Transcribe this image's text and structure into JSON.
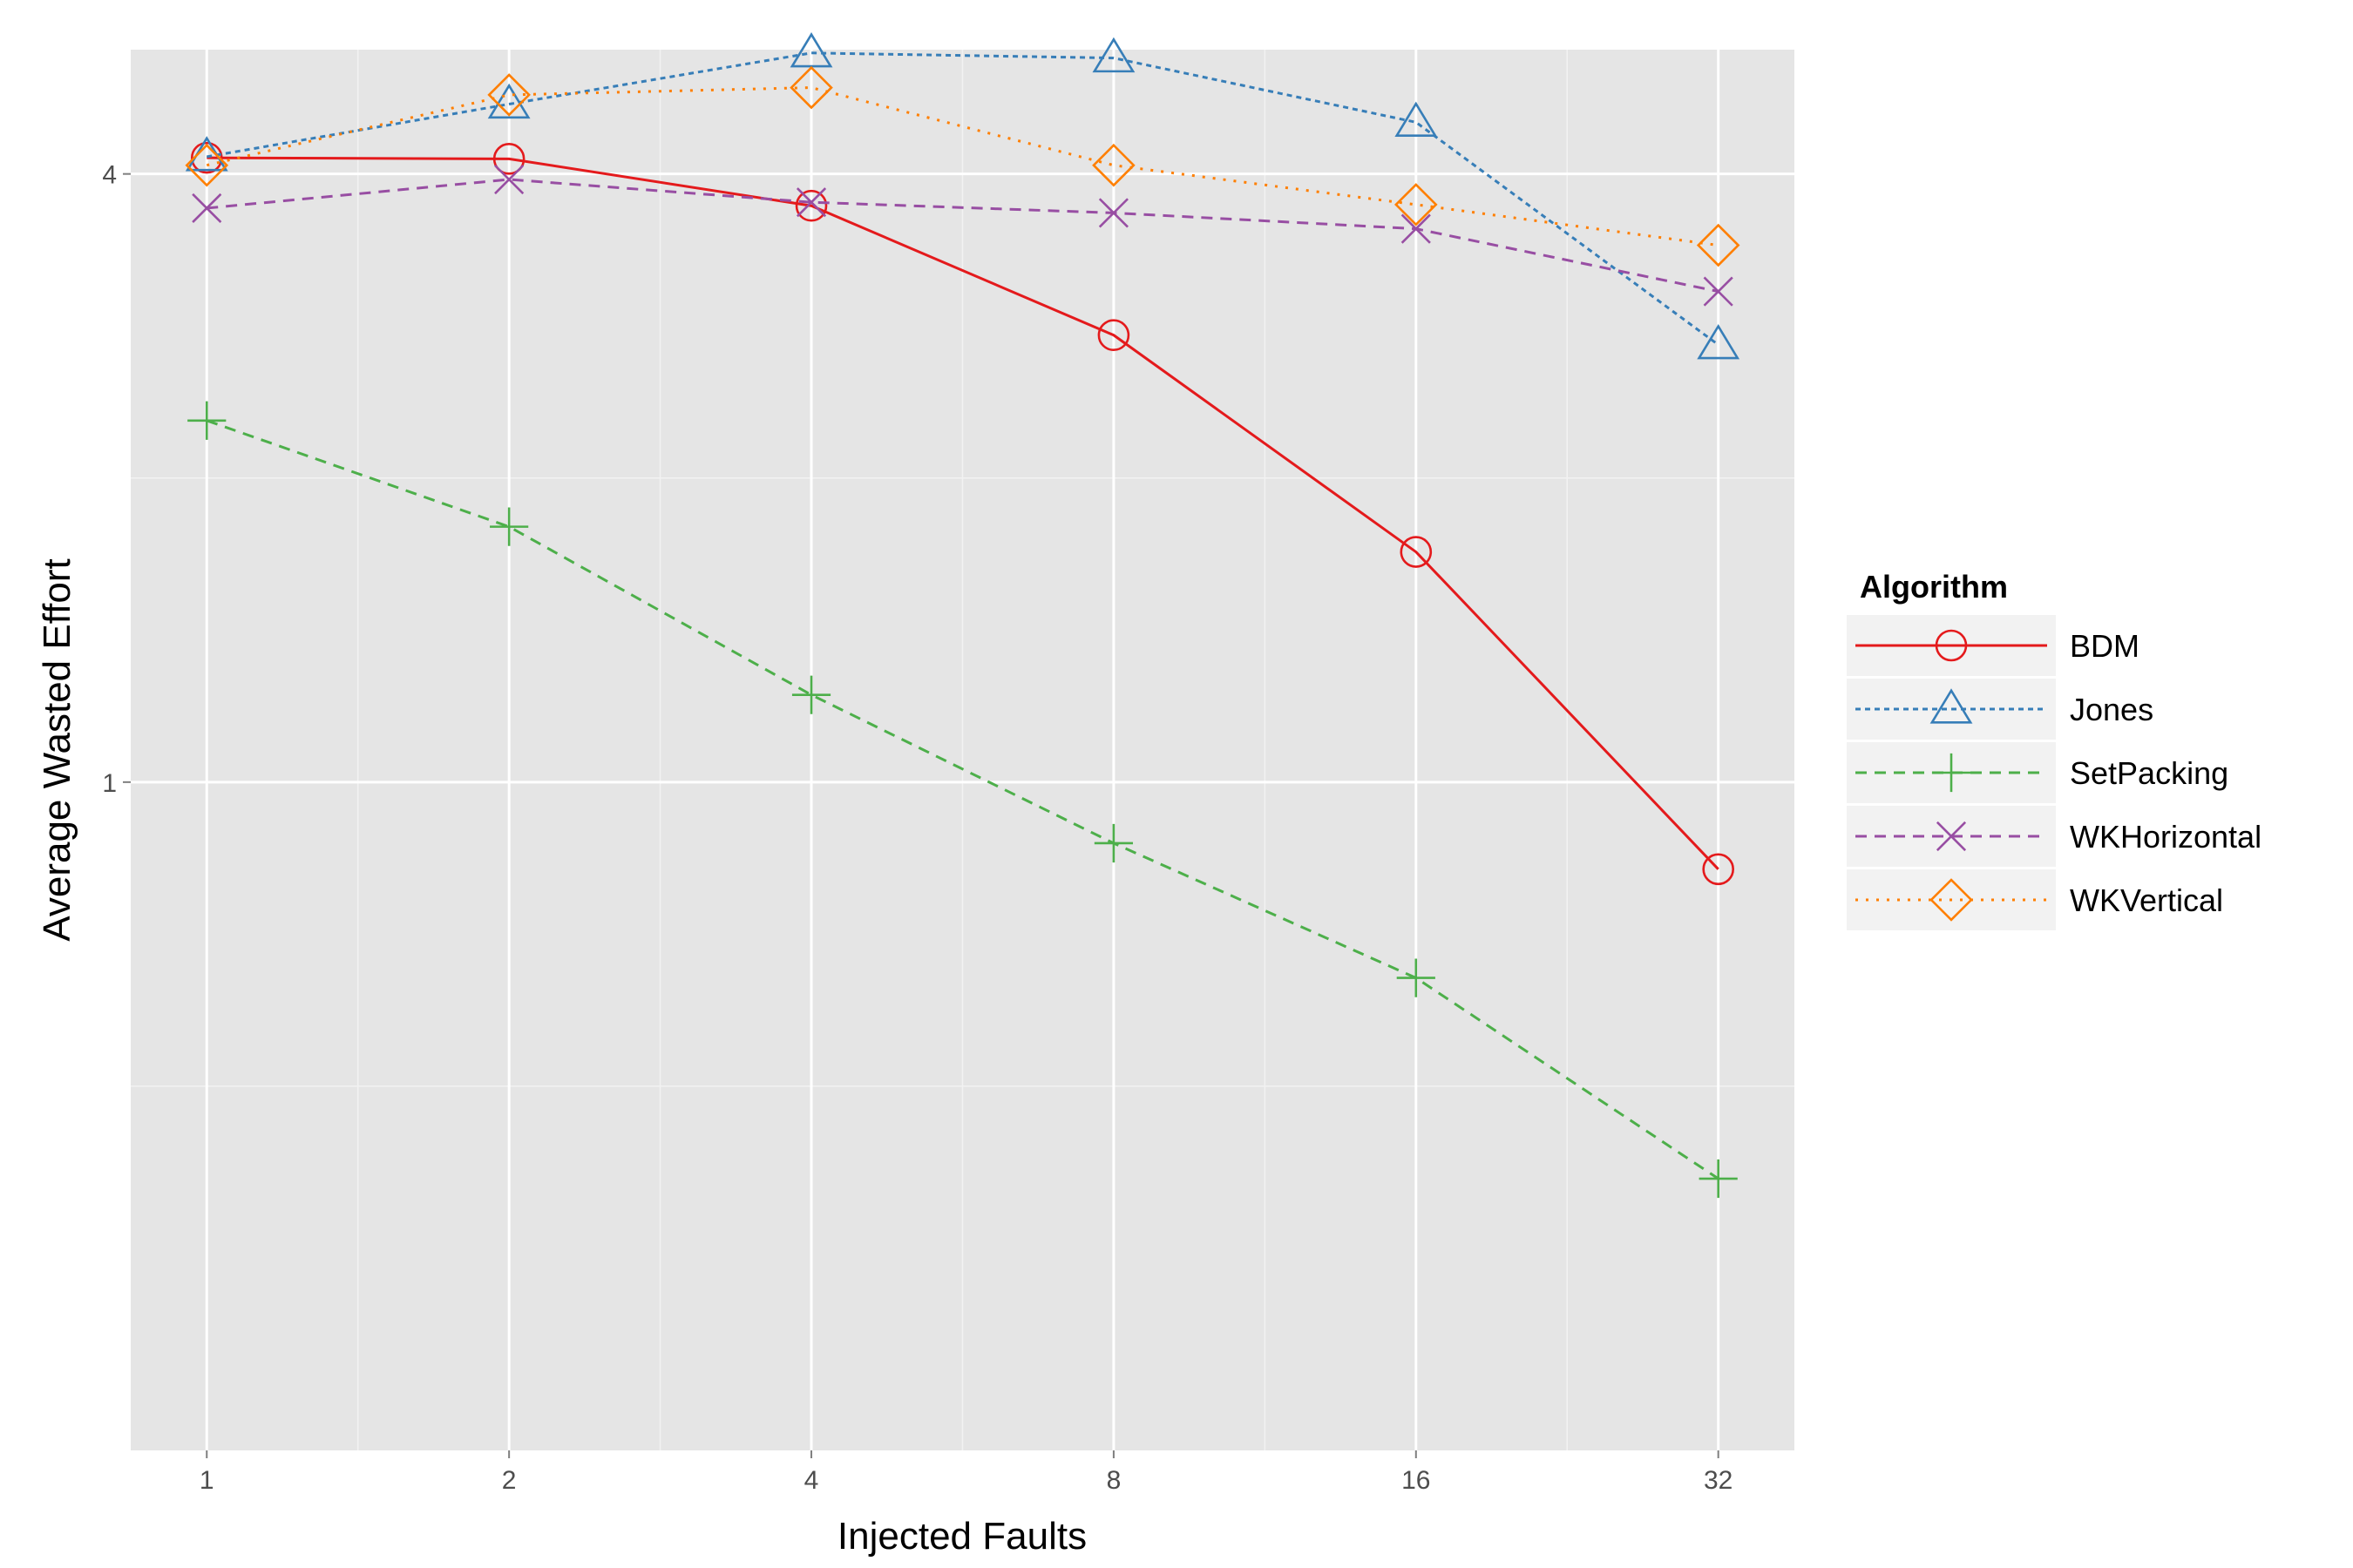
{
  "chart_data": {
    "type": "line",
    "title": "",
    "xlabel": "Injected Faults",
    "ylabel": "Average Wasted Effort",
    "x_scale": "log2",
    "y_scale": "log",
    "x_ticks": [
      1,
      2,
      4,
      8,
      16,
      32
    ],
    "x_tick_labels": [
      "1",
      "2",
      "4",
      "8",
      "16",
      "32"
    ],
    "y_ticks": [
      1,
      4
    ],
    "y_tick_labels": [
      "1",
      "4"
    ],
    "xlim": [
      0.84,
      38.1
    ],
    "ylim": [
      0.218,
      5.31
    ],
    "x": [
      1,
      2,
      4,
      8,
      16,
      32
    ],
    "grid": true,
    "legend_position": "right",
    "legend_title": "Algorithm",
    "background_color": "#e5e5e5",
    "series": [
      {
        "name": "BDM",
        "values": [
          4.15,
          4.14,
          3.72,
          2.77,
          1.69,
          0.82
        ],
        "color": "#e41a1c",
        "marker": "circle",
        "linestyle": "solid"
      },
      {
        "name": "Jones",
        "values": [
          4.16,
          4.69,
          5.27,
          5.21,
          4.5,
          2.71
        ],
        "color": "#377eb8",
        "marker": "triangle",
        "linestyle": "dotted-fine"
      },
      {
        "name": "SetPacking",
        "values": [
          2.28,
          1.79,
          1.22,
          0.87,
          0.64,
          0.405
        ],
        "color": "#4daf4a",
        "marker": "plus",
        "linestyle": "dashed"
      },
      {
        "name": "WKHorizontal",
        "values": [
          3.7,
          3.95,
          3.75,
          3.66,
          3.53,
          3.06
        ],
        "color": "#984ea3",
        "marker": "cross",
        "linestyle": "dashed"
      },
      {
        "name": "WKVertical",
        "values": [
          4.08,
          4.79,
          4.87,
          4.08,
          3.73,
          3.4
        ],
        "color": "#ff7f00",
        "marker": "diamond",
        "linestyle": "dotted"
      }
    ]
  }
}
